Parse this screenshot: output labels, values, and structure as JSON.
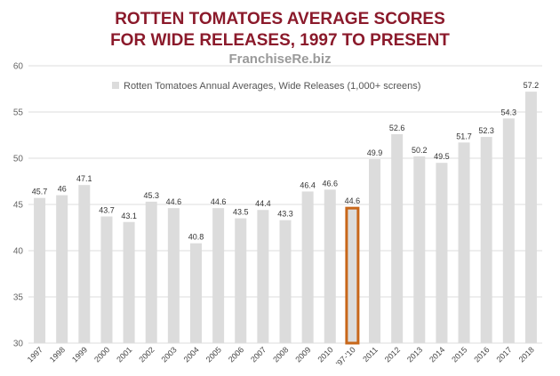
{
  "chart_data": {
    "type": "bar",
    "title_lines": [
      "ROTTEN TOMATOES AVERAGE SCORES",
      "FOR WIDE RELEASES, 1997 TO PRESENT"
    ],
    "subtitle": "FranchiseRe.biz",
    "legend": "Rotten Tomatoes Annual Averages, Wide Releases (1,000+ screens)",
    "categories": [
      "1997",
      "1998",
      "1999",
      "2000",
      "2001",
      "2002",
      "2003",
      "2004",
      "2005",
      "2006",
      "2007",
      "2008",
      "2009",
      "2010",
      "'97-'10",
      "2011",
      "2012",
      "2013",
      "2014",
      "2015",
      "2016",
      "2017",
      "2018"
    ],
    "values": [
      45.7,
      46,
      47.1,
      43.7,
      43.1,
      45.3,
      44.6,
      40.8,
      44.6,
      43.5,
      44.4,
      43.3,
      46.4,
      46.6,
      44.6,
      49.9,
      52.6,
      50.2,
      49.5,
      51.7,
      52.3,
      54.3,
      57.2
    ],
    "highlight_category": "'97-'10",
    "ylim": [
      30,
      60
    ],
    "yticks": [
      30,
      35,
      40,
      45,
      50,
      55,
      60
    ],
    "grid": true,
    "legend_position": "top-center",
    "colors": {
      "bar": "#dcdcdc",
      "highlight_stroke": "#c8671a",
      "title": "#8b1a2b",
      "subtitle": "#9a9a9a"
    }
  }
}
